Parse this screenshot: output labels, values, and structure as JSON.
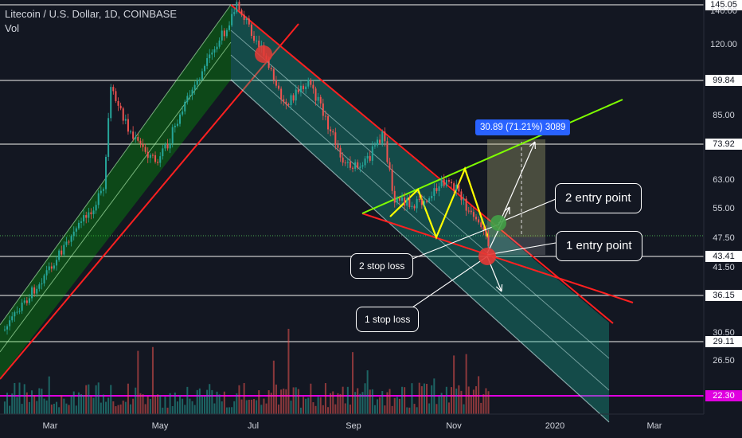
{
  "header": {
    "symbol": "Litecoin / U.S. Dollar, 1D, COINBASE",
    "volume_label": "Vol"
  },
  "measure_label": "30.89 (71.21%) 3089",
  "annotations": {
    "entry2": "2 entry point",
    "entry1": "1 entry point",
    "stop2": "2 stop loss",
    "stop1": "1 stop loss"
  },
  "colors": {
    "background": "#131722",
    "up_candle": "#26a69a",
    "down_candle": "#ef5350",
    "ascending_channel": "#00c800",
    "descending_channel": "#1abc9c",
    "trendline": "#ff2020",
    "triangle_top": "#7fff00",
    "zigzag": "#ffff00",
    "support_line": "#e000e0"
  },
  "chart_data": {
    "type": "candlestick",
    "title": "Litecoin / U.S. Dollar, 1D, COINBASE",
    "y_axis_ticks": [
      "145.05",
      "140.00",
      "120.00",
      "99.84",
      "85.00",
      "73.92",
      "63.00",
      "55.00",
      "47.50",
      "43.41",
      "41.50",
      "36.15",
      "30.50",
      "29.11",
      "26.50",
      "22.30"
    ],
    "highlighted_levels": [
      "145.05",
      "99.84",
      "73.92",
      "43.41",
      "36.15",
      "29.11",
      "22.30"
    ],
    "x_axis_ticks": [
      "Mar",
      "May",
      "Jul",
      "Sep",
      "Nov",
      "2020",
      "Mar"
    ],
    "price_path": [
      {
        "date": "2019-02-01",
        "price": 31
      },
      {
        "date": "2019-03-10",
        "price": 46
      },
      {
        "date": "2019-04-02",
        "price": 60
      },
      {
        "date": "2019-04-06",
        "price": 96
      },
      {
        "date": "2019-04-20",
        "price": 76
      },
      {
        "date": "2019-05-05",
        "price": 68
      },
      {
        "date": "2019-05-25",
        "price": 95
      },
      {
        "date": "2019-06-10",
        "price": 120
      },
      {
        "date": "2019-06-22",
        "price": 145
      },
      {
        "date": "2019-07-05",
        "price": 120
      },
      {
        "date": "2019-07-20",
        "price": 90
      },
      {
        "date": "2019-08-05",
        "price": 99
      },
      {
        "date": "2019-08-25",
        "price": 69
      },
      {
        "date": "2019-09-05",
        "price": 66
      },
      {
        "date": "2019-09-18",
        "price": 78
      },
      {
        "date": "2019-09-25",
        "price": 58
      },
      {
        "date": "2019-10-10",
        "price": 56
      },
      {
        "date": "2019-10-28",
        "price": 64
      },
      {
        "date": "2019-11-12",
        "price": 52
      },
      {
        "date": "2019-11-22",
        "price": 46
      }
    ],
    "projection": {
      "value": "30.89",
      "percent": "71.21%",
      "bars": "3089"
    }
  }
}
